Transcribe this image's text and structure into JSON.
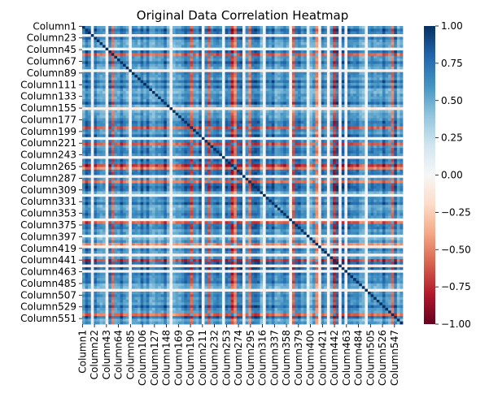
{
  "chart_data": {
    "type": "heatmap",
    "title": "Original Data Correlation Heatmap",
    "xlabel": "",
    "ylabel": "",
    "n_columns": 561,
    "y_tick_labels": [
      "Column1",
      "Column23",
      "Column45",
      "Column67",
      "Column89",
      "Column111",
      "Column133",
      "Column155",
      "Column177",
      "Column199",
      "Column221",
      "Column243",
      "Column265",
      "Column287",
      "Column309",
      "Column331",
      "Column353",
      "Column375",
      "Column397",
      "Column419",
      "Column441",
      "Column463",
      "Column485",
      "Column507",
      "Column529",
      "Column551"
    ],
    "x_tick_labels": [
      "Column1",
      "Column22",
      "Column43",
      "Column64",
      "Column85",
      "Column106",
      "Column127",
      "Column148",
      "Column169",
      "Column190",
      "Column211",
      "Column232",
      "Column253",
      "Column274",
      "Column295",
      "Column316",
      "Column337",
      "Column358",
      "Column379",
      "Column400",
      "Column421",
      "Column442",
      "Column463",
      "Column484",
      "Column505",
      "Column526",
      "Column547"
    ],
    "colorbar": {
      "min": -1.0,
      "max": 1.0,
      "ticks": [
        1.0,
        0.75,
        0.5,
        0.25,
        0.0,
        -0.25,
        -0.5,
        -0.75,
        -1.0
      ],
      "tick_labels": [
        "1.00",
        "0.75",
        "0.50",
        "0.25",
        "0.00",
        "−0.25",
        "−0.50",
        "−0.75",
        "−1.00"
      ],
      "colormap": "RdBu",
      "colors": [
        "#67001f",
        "#b2182b",
        "#d6604d",
        "#f4a582",
        "#fddbc7",
        "#f7f7f7",
        "#d1e5f0",
        "#92c5de",
        "#4393c3",
        "#2166ac",
        "#053061"
      ]
    },
    "diagonal_value": 1.0
  }
}
